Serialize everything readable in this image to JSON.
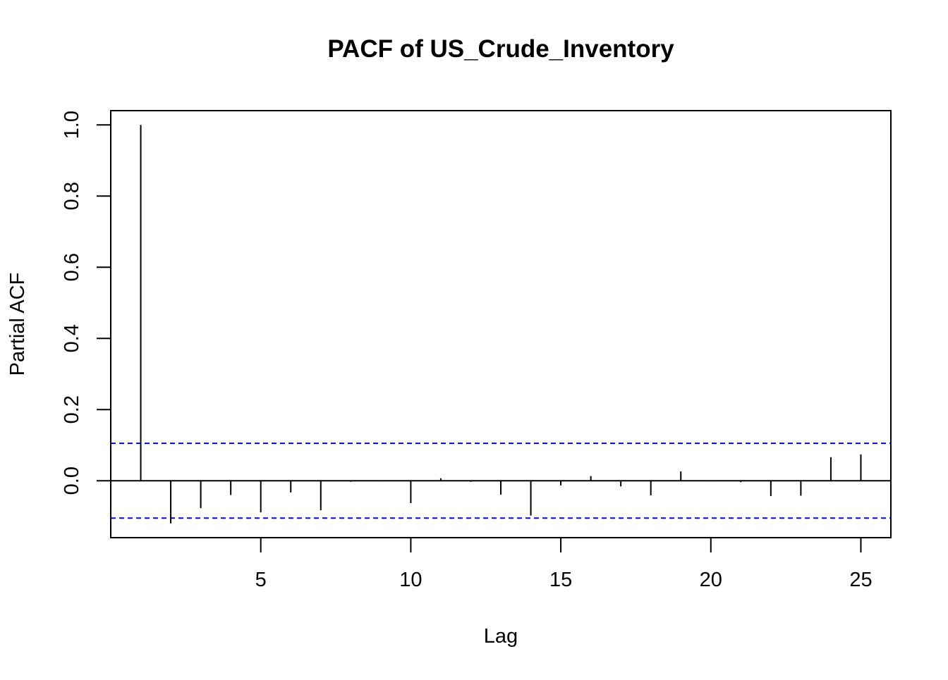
{
  "chart_data": {
    "type": "bar",
    "title": "PACF of US_Crude_Inventory",
    "xlabel": "Lag",
    "ylabel": "Partial ACF",
    "xlim": [
      0,
      26
    ],
    "ylim": [
      -0.16,
      1.04
    ],
    "x_ticks": [
      5,
      10,
      15,
      20,
      25
    ],
    "x_tick_labels": [
      "5",
      "10",
      "15",
      "20",
      "25"
    ],
    "y_ticks": [
      0.0,
      0.2,
      0.4,
      0.6,
      0.8,
      1.0
    ],
    "y_tick_labels": [
      "0.0",
      "0.2",
      "0.4",
      "0.6",
      "0.8",
      "1.0"
    ],
    "confidence_bounds": [
      0.105,
      -0.105
    ],
    "confidence_color": "#0000ff",
    "bar_color": "#000000",
    "grid": false,
    "lags": [
      1,
      2,
      3,
      4,
      5,
      6,
      7,
      8,
      9,
      10,
      11,
      12,
      13,
      14,
      15,
      16,
      17,
      18,
      19,
      20,
      21,
      22,
      23,
      24,
      25
    ],
    "values": [
      1.0,
      -0.12,
      -0.077,
      -0.04,
      -0.089,
      -0.033,
      -0.083,
      -0.003,
      -0.002,
      -0.063,
      0.007,
      -0.003,
      -0.039,
      -0.098,
      -0.013,
      0.013,
      -0.016,
      -0.041,
      0.026,
      -0.002,
      -0.004,
      -0.043,
      -0.042,
      0.066,
      0.074
    ]
  }
}
